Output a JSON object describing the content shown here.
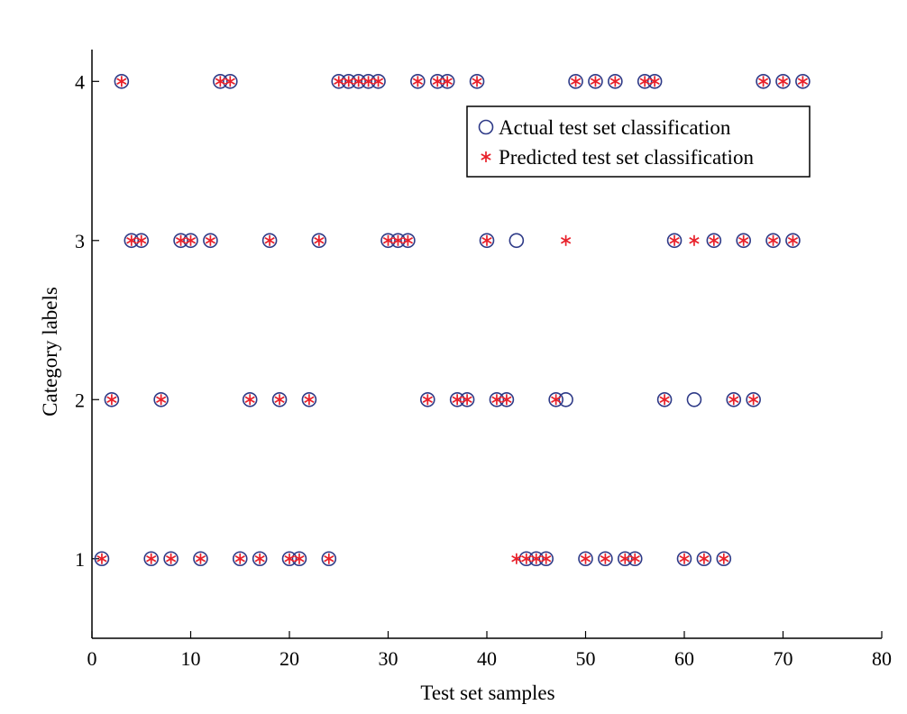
{
  "chart_data": {
    "type": "scatter",
    "xlabel": "Test set samples",
    "ylabel": "Category labels",
    "xlim": [
      0,
      80
    ],
    "ylim": [
      0.5,
      4.2
    ],
    "xticks": [
      0,
      10,
      20,
      30,
      40,
      50,
      60,
      70,
      80
    ],
    "yticks": [
      1,
      2,
      3,
      4
    ],
    "grid": false,
    "legend_position": "top-right",
    "series": [
      {
        "name": "Actual test set classification",
        "marker": "circle",
        "color": "#2e3a87",
        "x": [
          1,
          2,
          3,
          4,
          5,
          6,
          7,
          8,
          9,
          10,
          11,
          12,
          13,
          14,
          15,
          16,
          17,
          18,
          19,
          20,
          21,
          22,
          23,
          24,
          25,
          26,
          27,
          28,
          29,
          30,
          31,
          32,
          33,
          34,
          35,
          36,
          37,
          38,
          39,
          40,
          41,
          42,
          43,
          44,
          45,
          46,
          47,
          48,
          49,
          50,
          51,
          52,
          53,
          54,
          55,
          56,
          57,
          58,
          59,
          60,
          61,
          62,
          63,
          64,
          65,
          66,
          67,
          68,
          69,
          70,
          71,
          72
        ],
        "y": [
          1,
          2,
          4,
          3,
          3,
          1,
          2,
          1,
          3,
          3,
          1,
          3,
          4,
          4,
          1,
          2,
          1,
          3,
          2,
          1,
          1,
          2,
          3,
          1,
          4,
          4,
          4,
          4,
          4,
          3,
          3,
          3,
          4,
          2,
          4,
          4,
          2,
          2,
          4,
          3,
          2,
          2,
          3,
          1,
          1,
          1,
          2,
          2,
          4,
          1,
          4,
          1,
          4,
          1,
          1,
          4,
          4,
          2,
          3,
          1,
          2,
          1,
          3,
          1,
          2,
          3,
          2,
          4,
          3,
          4,
          3,
          4
        ]
      },
      {
        "name": "Predicted test set classification",
        "marker": "asterisk",
        "color": "#e8202a",
        "x": [
          1,
          2,
          3,
          4,
          5,
          6,
          7,
          8,
          9,
          10,
          11,
          12,
          13,
          14,
          15,
          16,
          17,
          18,
          19,
          20,
          21,
          22,
          23,
          24,
          25,
          26,
          27,
          28,
          29,
          30,
          31,
          32,
          33,
          34,
          35,
          36,
          37,
          38,
          39,
          40,
          41,
          42,
          43,
          44,
          45,
          46,
          47,
          48,
          49,
          50,
          51,
          52,
          53,
          54,
          55,
          56,
          57,
          58,
          59,
          60,
          61,
          62,
          63,
          64,
          65,
          66,
          67,
          68,
          69,
          70,
          71,
          72
        ],
        "y": [
          1,
          2,
          4,
          3,
          3,
          1,
          2,
          1,
          3,
          3,
          1,
          3,
          4,
          4,
          1,
          2,
          1,
          3,
          2,
          1,
          1,
          2,
          3,
          1,
          4,
          4,
          4,
          4,
          4,
          3,
          3,
          3,
          4,
          2,
          4,
          4,
          2,
          2,
          4,
          3,
          2,
          2,
          1,
          1,
          1,
          1,
          2,
          3,
          4,
          1,
          4,
          1,
          4,
          1,
          1,
          4,
          4,
          2,
          3,
          1,
          3,
          1,
          3,
          1,
          2,
          3,
          2,
          4,
          3,
          4,
          3,
          4
        ]
      }
    ]
  }
}
